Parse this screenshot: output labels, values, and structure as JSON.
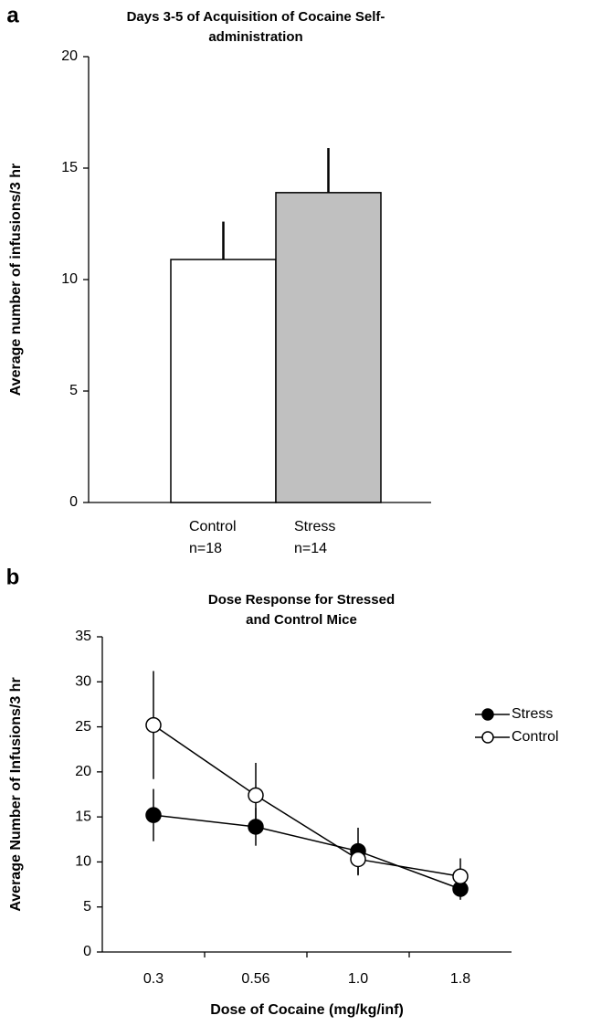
{
  "chart_data": [
    {
      "type": "bar",
      "panel_label": "a",
      "title": "Days 3-5 of Acquisition of Cocaine Self-administration",
      "y_label": "Average number of infusions/3 hr",
      "categories": [
        "Control",
        "Stress"
      ],
      "n_labels": [
        "n=18",
        "n=14"
      ],
      "values": [
        10.9,
        13.9
      ],
      "errors": [
        1.7,
        2.0
      ],
      "colors": [
        "#ffffff",
        "#c0c0c0"
      ],
      "ylim": [
        0,
        20
      ],
      "yticks": [
        0,
        5,
        10,
        15,
        20
      ]
    },
    {
      "type": "line",
      "panel_label": "b",
      "title": "Dose Response for Stressed and Control Mice",
      "y_label": "Average Number of Infusions/3 hr",
      "x_label": "Dose of Cocaine (mg/kg/inf)",
      "categories": [
        "0.3",
        "0.56",
        "1.0",
        "1.8"
      ],
      "series": [
        {
          "name": "Stress",
          "color": "#000000",
          "values": [
            15.2,
            13.9,
            11.2,
            7.0
          ],
          "errors": [
            2.9,
            2.1,
            2.6,
            1.2
          ]
        },
        {
          "name": "Control",
          "color": "#ffffff",
          "values": [
            25.2,
            17.4,
            10.3,
            8.4
          ],
          "errors": [
            6.0,
            3.6,
            1.8,
            2.0
          ]
        }
      ],
      "ylim": [
        0,
        35
      ],
      "yticks": [
        0,
        5,
        10,
        15,
        20,
        25,
        30,
        35
      ],
      "legend": "upper right"
    }
  ]
}
